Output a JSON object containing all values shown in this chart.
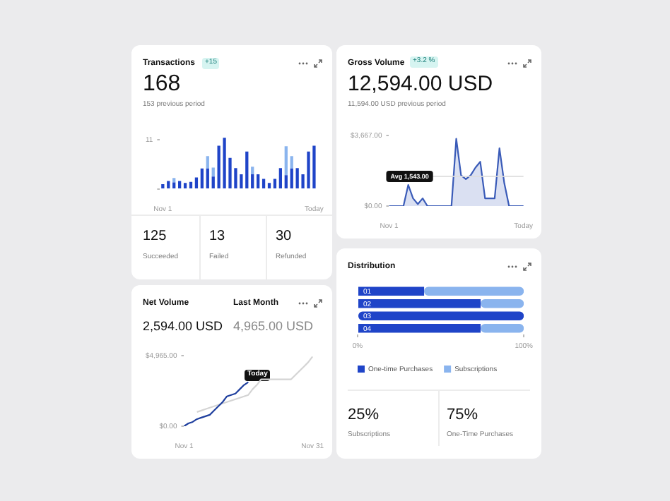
{
  "chart_data": [
    {
      "type": "bar",
      "title": "Transactions",
      "stacked": true,
      "categories": [
        "Nov 1",
        null,
        null,
        null,
        null,
        null,
        null,
        null,
        null,
        null,
        null,
        null,
        null,
        null,
        null,
        null,
        null,
        null,
        null,
        null,
        null,
        null,
        null,
        null,
        null,
        null,
        null,
        "Today"
      ],
      "series": [
        {
          "color": "#1f44c8",
          "values": [
            1.1,
            1.8,
            1.5,
            1.8,
            1.4,
            1.6,
            2.6,
            4.6,
            4.6,
            2.8,
            9.7,
            11.5,
            7.0,
            4.7,
            3.3,
            8.4,
            3.3,
            3.3,
            2.3,
            1.4,
            2.3,
            4.7,
            3.1,
            4.6,
            4.7,
            3.3,
            8.4,
            9.7
          ]
        },
        {
          "color": "#8ab4ee",
          "values": [
            null,
            null,
            1.0,
            null,
            null,
            null,
            null,
            null,
            2.8,
            2.0,
            null,
            null,
            null,
            null,
            null,
            null,
            1.7,
            null,
            null,
            null,
            null,
            null,
            6.5,
            2.8,
            null,
            null,
            null,
            null
          ]
        }
      ],
      "ylim": [
        0,
        12
      ],
      "yticks": [
        0,
        11
      ],
      "annotations": [
        "+15",
        "168",
        "153 previous period",
        "125",
        "Succeeded",
        "13",
        "Failed",
        "30",
        "Refunded"
      ]
    },
    {
      "type": "area",
      "title": "Gross Volume",
      "categories": [
        "Nov 1",
        null,
        null,
        null,
        null,
        null,
        null,
        null,
        null,
        null,
        null,
        null,
        null,
        null,
        null,
        null,
        null,
        null,
        null,
        null,
        null,
        null,
        null,
        null,
        null,
        null,
        null,
        null,
        "Today"
      ],
      "series": [
        {
          "color": "#3a5bb8",
          "values": [
            0,
            0,
            0,
            0,
            1100,
            400,
            100,
            400,
            0,
            0,
            0,
            0,
            0,
            0,
            3500,
            1600,
            1400,
            1600,
            2000,
            2300,
            400,
            400,
            400,
            3000,
            1200,
            0,
            0,
            0,
            0
          ]
        }
      ],
      "ylim": [
        0,
        3667
      ],
      "yticks": [
        {
          "value": 0,
          "label": "$0.00"
        },
        {
          "value": 3667,
          "label": "$3,667.00"
        }
      ],
      "ref_lines": [
        {
          "axis": "y",
          "value": 1543,
          "label": "Avg 1,543.00"
        }
      ],
      "annotations": [
        "+3.2 %",
        "12,594.00 USD",
        "11,594.00 USD  previous period"
      ]
    },
    {
      "type": "bar",
      "title": "Distribution",
      "orientation": "horizontal",
      "stacked": true,
      "categories": [
        "01",
        "02",
        "03",
        "04"
      ],
      "series": [
        {
          "name": "One-time Purchases",
          "color": "#1f44c8",
          "values": [
            40,
            74,
            100,
            74
          ]
        },
        {
          "name": "Subscriptions",
          "color": "#8ab4ee",
          "values": [
            60,
            26,
            0,
            26
          ]
        }
      ],
      "xlim": [
        0,
        100
      ],
      "xticks": [
        {
          "value": 0,
          "label": "0%"
        },
        {
          "value": 100,
          "label": "100%"
        }
      ],
      "legend": "bottom",
      "annotations": [
        "25%",
        "Subscriptions",
        "75%",
        "One-Time Purchases"
      ]
    },
    {
      "type": "line",
      "title": "Net Volume",
      "categories": [
        "Nov 1",
        null,
        null,
        null,
        null,
        null,
        null,
        null,
        null,
        null,
        null,
        null,
        null,
        null,
        null,
        null,
        null,
        null,
        null,
        null,
        null,
        null,
        null,
        null,
        null,
        null,
        null,
        null,
        null,
        null,
        "Nov 31"
      ],
      "series": [
        {
          "color": "#1f3f9e",
          "values": [
            0,
            200,
            300,
            500,
            600,
            700,
            800,
            1100,
            1400,
            1700,
            2100,
            2200,
            2300,
            2600,
            2900,
            3100,
            null,
            null,
            null,
            null,
            null,
            null,
            null,
            null,
            null,
            null,
            null,
            null,
            null,
            null,
            null
          ]
        },
        {
          "color": "#d4d4d4",
          "values": [
            null,
            null,
            null,
            1000,
            1100,
            1200,
            1300,
            1400,
            1500,
            1600,
            1700,
            1800,
            1900,
            2000,
            2100,
            2200,
            2600,
            2900,
            3300,
            3300,
            3300,
            3300,
            3300,
            3300,
            3300,
            3300,
            3600,
            3900,
            4200,
            4500,
            4900
          ]
        }
      ],
      "ylim": [
        0,
        4965
      ],
      "yticks": [
        {
          "value": 0,
          "label": "$0.00"
        },
        {
          "value": 4965,
          "label": "$4,965.00"
        }
      ],
      "annotations": [
        "Last Month",
        "2,594.00 USD",
        "4,965.00 USD",
        "Today"
      ]
    }
  ]
}
